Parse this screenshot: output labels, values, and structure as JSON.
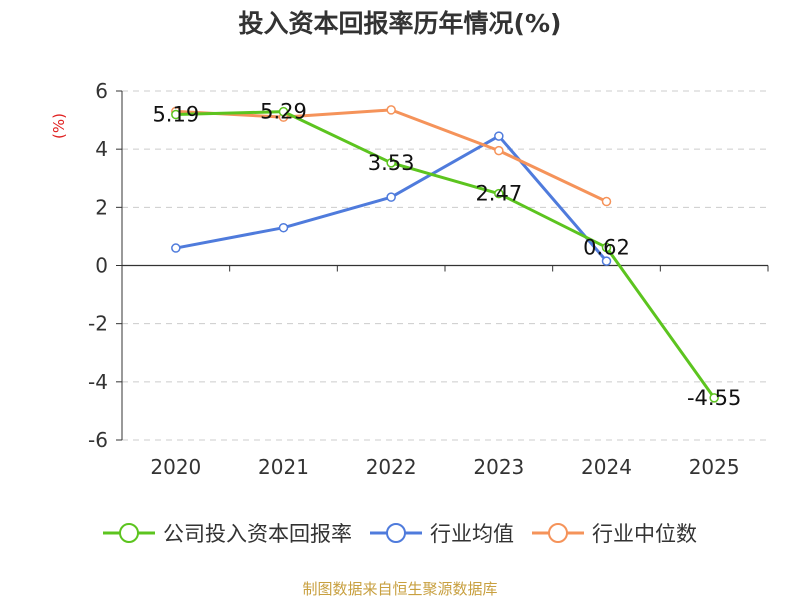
{
  "chart_data": {
    "type": "line",
    "title": "投入资本回报率历年情况(%)",
    "ylabel": "(%)",
    "xlabel": "",
    "categories": [
      "2020",
      "2021",
      "2022",
      "2023",
      "2024",
      "2025"
    ],
    "yticks": [
      "6",
      "4",
      "2",
      "0",
      "-2",
      "-4",
      "-6"
    ],
    "ylim": [
      -6,
      6
    ],
    "grid": true,
    "legend_position": "bottom",
    "series": [
      {
        "name": "公司投入资本回报率",
        "color": "#5cc41f",
        "values": [
          5.19,
          5.29,
          3.53,
          2.47,
          0.62,
          -4.55
        ],
        "labels": [
          "5.19",
          "5.29",
          "3.53",
          "2.47",
          "0.62",
          "-4.55"
        ]
      },
      {
        "name": "行业均值",
        "color": "#4f7bdc",
        "values": [
          0.6,
          1.3,
          2.35,
          4.45,
          0.15,
          null
        ]
      },
      {
        "name": "行业中位数",
        "color": "#f5935a",
        "values": [
          5.3,
          5.1,
          5.35,
          3.95,
          2.2,
          null
        ]
      }
    ],
    "source": "制图数据来自恒生聚源数据库"
  }
}
